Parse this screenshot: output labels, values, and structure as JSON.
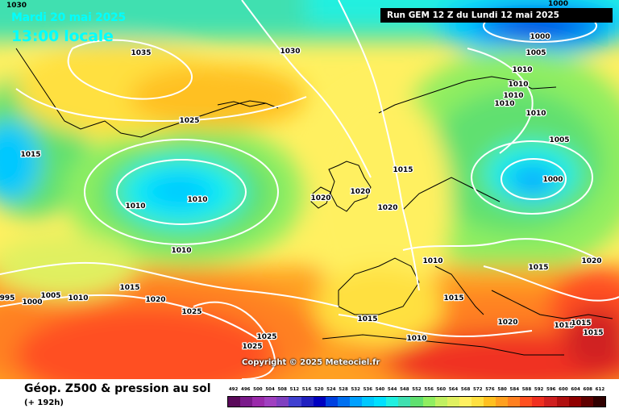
{
  "corner_label": "1030",
  "edge_label": "1000",
  "date_line": "Mardi 20 mai 2025",
  "time_line": "13:00 locale",
  "run_info": "Run GEM 12 Z du Lundi 12 mai 2025",
  "copyright": "Copyright © 2025 Meteociel.fr",
  "footer": {
    "title": "Géop. Z500 & pression au sol",
    "subtitle": "(+ 192h)"
  },
  "colors": {
    "overlay_text": "#00ffff",
    "isobar": "#ffffff",
    "run_box_bg": "#000000"
  },
  "scale": {
    "values": [
      "492",
      "496",
      "500",
      "504",
      "508",
      "512",
      "516",
      "520",
      "524",
      "528",
      "532",
      "536",
      "540",
      "544",
      "548",
      "552",
      "556",
      "560",
      "564",
      "568",
      "572",
      "576",
      "580",
      "584",
      "588",
      "592",
      "596",
      "600",
      "604",
      "608",
      "612"
    ],
    "colors": [
      "#5a0a5a",
      "#7a1a8a",
      "#9a2aaa",
      "#a040c0",
      "#8040c0",
      "#4040d0",
      "#2020c0",
      "#0000c0",
      "#0040e0",
      "#0070f0",
      "#00a0ff",
      "#00c8ff",
      "#00e0ff",
      "#20f0e0",
      "#40e0b0",
      "#60e070",
      "#90ee60",
      "#c0f060",
      "#e0f060",
      "#fff060",
      "#ffe040",
      "#ffc020",
      "#ffa020",
      "#ff8020",
      "#ff5020",
      "#f03020",
      "#d02020",
      "#b01010",
      "#900000",
      "#600000",
      "#300000"
    ]
  },
  "pressure_labels": [
    {
      "text": "1035",
      "name": "isobar-label-1035-greenland"
    },
    {
      "text": "1030",
      "name": "isobar-label-1030-north-atlantic"
    },
    {
      "text": "1025",
      "name": "isobar-label-1025-greenland-south"
    },
    {
      "text": "1015",
      "name": "isobar-label-1015-west"
    },
    {
      "text": "1010",
      "name": "isobar-label-1010-low-west"
    },
    {
      "text": "1010",
      "name": "isobar-label-1010-low-center"
    },
    {
      "text": "1010",
      "name": "isobar-label-1010-mid-atlantic"
    },
    {
      "text": "1020",
      "name": "isobar-label-1020-ireland"
    },
    {
      "text": "1020",
      "name": "isobar-label-1020-britain"
    },
    {
      "text": "1020",
      "name": "isobar-label-1020-channel"
    },
    {
      "text": "1015",
      "name": "isobar-label-1015-north-sea"
    },
    {
      "text": "1000",
      "name": "isobar-label-1000-norwegian-sea"
    },
    {
      "text": "1005",
      "name": "isobar-label-1005-norwegian-sea"
    },
    {
      "text": "1010",
      "name": "isobar-label-1010-scandinavia-1"
    },
    {
      "text": "1010",
      "name": "isobar-label-1010-scandinavia-2"
    },
    {
      "text": "1010",
      "name": "isobar-label-1010-scandinavia-3"
    },
    {
      "text": "1010",
      "name": "isobar-label-1010-scandinavia-4"
    },
    {
      "text": "1010",
      "name": "isobar-label-1010-baltic"
    },
    {
      "text": "1005",
      "name": "isobar-label-1005-russia"
    },
    {
      "text": "1000",
      "name": "isobar-label-1000-belarus"
    },
    {
      "text": "1010",
      "name": "isobar-label-1010-alps"
    },
    {
      "text": "1015",
      "name": "isobar-label-1015-balkans"
    },
    {
      "text": "1020",
      "name": "isobar-label-1020-black-sea"
    },
    {
      "text": "1015",
      "name": "isobar-label-1015-italy"
    },
    {
      "text": "1020",
      "name": "isobar-label-1020-greece"
    },
    {
      "text": "1015",
      "name": "isobar-label-1015-aegean-1"
    },
    {
      "text": "1015",
      "name": "isobar-label-1015-aegean-2"
    },
    {
      "text": "1015",
      "name": "isobar-label-1015-turkey"
    },
    {
      "text": "1015",
      "name": "isobar-label-1015-spain"
    },
    {
      "text": "1010",
      "name": "isobar-label-1010-libya"
    },
    {
      "text": "1015",
      "name": "isobar-label-1015-azores"
    },
    {
      "text": "1020",
      "name": "isobar-label-1020-azores"
    },
    {
      "text": "1025",
      "name": "isobar-label-1025-azores"
    },
    {
      "text": "1025",
      "name": "isobar-label-1025-south-1"
    },
    {
      "text": "1025",
      "name": "isobar-label-1025-south-2"
    },
    {
      "text": "1005",
      "name": "isobar-label-1005-west"
    },
    {
      "text": "1000",
      "name": "isobar-label-1000-west"
    },
    {
      "text": "995",
      "name": "isobar-label-995-west"
    },
    {
      "text": "1010",
      "name": "isobar-label-1010-southwest"
    }
  ]
}
